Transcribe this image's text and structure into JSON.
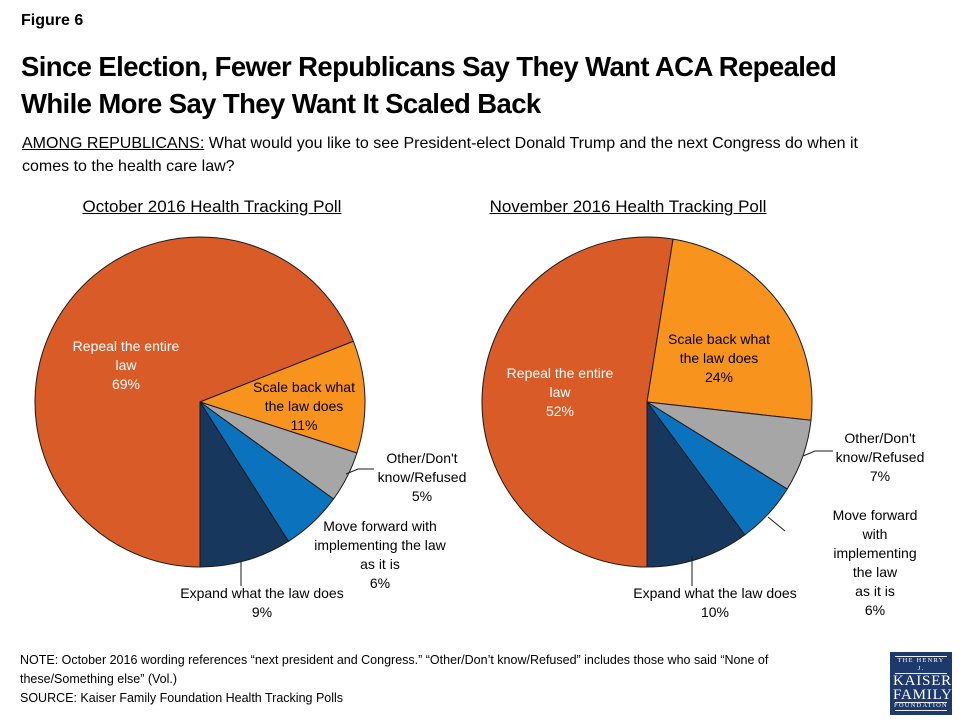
{
  "figure_label": "Figure 6",
  "title": "Since Election, Fewer Republicans Say They Want ACA Repealed\nWhile More Say They Want It Scaled Back",
  "subtitle": {
    "prefix": "AMONG REPUBLICANS:",
    "text": " What would you like to see President-elect Donald Trump and the next Congress do when it\ncomes to the health care law?"
  },
  "note_line": "NOTE: October 2016  wording references “next president and Congress.” “Other/Don’t know/Refused” includes those who said “None of\nthese/Something else” (Vol.)",
  "source_line": "SOURCE: Kaiser Family Foundation Health Tracking Polls",
  "logo": {
    "line1": "THE HENRY J.",
    "line2": "KAISER",
    "line3": "FAMILY",
    "line4": "FOUNDATION"
  },
  "colors": {
    "repeal": "#D95B27",
    "scale_back": "#F8941D",
    "other": "#A6A6A6",
    "move_forward": "#0B72BE",
    "expand": "#17375C",
    "slice_outline": "#1a1a1a",
    "logo_background": "#1E3A6C"
  },
  "chart_data": [
    {
      "type": "pie",
      "title": "October 2016 Health Tracking Poll",
      "start_angle_deg": 180,
      "direction": "clockwise",
      "slices": [
        {
          "label": "Repeal the entire law",
          "pct": 69,
          "color": "#D95B27",
          "text_color": "#FFFFFF",
          "display": "Repeal the entire\nlaw\n69%"
        },
        {
          "label": "Scale back what the law does",
          "pct": 11,
          "color": "#F8941D",
          "text_color": "#000000",
          "display": "Scale back what\nthe law does\n11%"
        },
        {
          "label": "Other/Don't know/Refused",
          "pct": 5,
          "color": "#A6A6A6",
          "text_color": "#000000",
          "display": "Other/Don't\nknow/Refused\n5%"
        },
        {
          "label": "Move forward with implementing the law as it is",
          "pct": 6,
          "color": "#0B72BE",
          "text_color": "#000000",
          "display": "Move forward with\nimplementing the law\nas it is\n6%"
        },
        {
          "label": "Expand what the law does",
          "pct": 9,
          "color": "#17375C",
          "text_color": "#000000",
          "display": "Expand what the law does\n9%"
        }
      ]
    },
    {
      "type": "pie",
      "title": "November 2016 Health Tracking Poll",
      "start_angle_deg": 180,
      "direction": "clockwise",
      "slices": [
        {
          "label": "Repeal the entire law",
          "pct": 52,
          "color": "#D95B27",
          "text_color": "#FFFFFF",
          "display": "Repeal the entire\nlaw\n52%"
        },
        {
          "label": "Scale back what the law does",
          "pct": 24,
          "color": "#F8941D",
          "text_color": "#000000",
          "display": "Scale back what\nthe law does\n24%"
        },
        {
          "label": "Other/Don't know/Refused",
          "pct": 7,
          "color": "#A6A6A6",
          "text_color": "#000000",
          "display": "Other/Don't\nknow/Refused\n7%"
        },
        {
          "label": "Move forward with implementing the law as it is",
          "pct": 6,
          "color": "#0B72BE",
          "text_color": "#000000",
          "display": "Move forward with\nimplementing the law\nas it is\n6%"
        },
        {
          "label": "Expand what the law does",
          "pct": 10,
          "color": "#17375C",
          "text_color": "#000000",
          "display": "Expand what the law does\n10%"
        }
      ]
    }
  ]
}
